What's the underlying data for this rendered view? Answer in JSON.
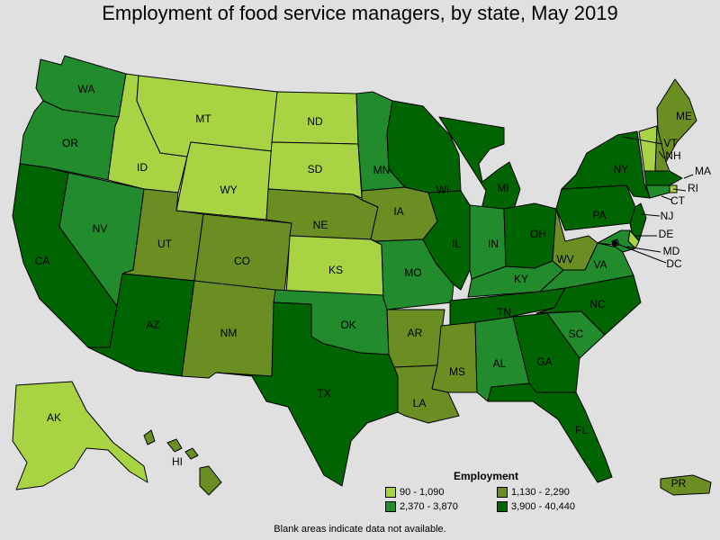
{
  "title": "Employment of food service managers, by state, May 2019",
  "legend": {
    "title": "Employment",
    "items": [
      {
        "label": "90 - 1,090",
        "color": "#a8d444"
      },
      {
        "label": "1,130 - 2,290",
        "color": "#6b8e23"
      },
      {
        "label": "2,370 - 3,870",
        "color": "#228b2e"
      },
      {
        "label": "3,900 - 40,440",
        "color": "#006400"
      }
    ]
  },
  "note": "Blank areas indicate data not available.",
  "states": {
    "WA": 3,
    "OR": 3,
    "CA": 4,
    "NV": 3,
    "ID": 1,
    "MT": 1,
    "WY": 1,
    "UT": 2,
    "AZ": 4,
    "CO": 2,
    "NM": 2,
    "ND": 1,
    "SD": 1,
    "NE": 2,
    "KS": 1,
    "OK": 3,
    "TX": 4,
    "MN": 3,
    "IA": 2,
    "MO": 3,
    "AR": 2,
    "LA": 2,
    "WI": 4,
    "IL": 4,
    "MI": 4,
    "IN": 3,
    "OH": 4,
    "KY": 3,
    "TN": 4,
    "MS": 2,
    "AL": 3,
    "GA": 4,
    "FL": 4,
    "SC": 3,
    "NC": 4,
    "VA": 3,
    "WV": 2,
    "PA": 4,
    "NY": 4,
    "ME": 2,
    "VT": 1,
    "NH": 2,
    "MA": 4,
    "RI": 1,
    "CT": 3,
    "NJ": 4,
    "DE": 1,
    "MD": 3,
    "DC": 3,
    "AK": 1,
    "HI": 2,
    "PR": 2
  }
}
